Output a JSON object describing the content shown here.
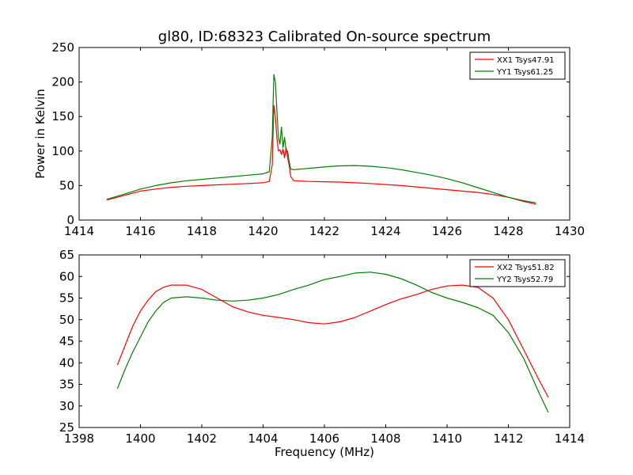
{
  "figure_title": "gl80, ID:68323 Calibrated On-source spectrum",
  "colors": {
    "red": "#ff0000",
    "green": "#007f00"
  },
  "chart_data": [
    {
      "type": "line",
      "title": "gl80, ID:68323 Calibrated On-source spectrum",
      "xlabel": "",
      "ylabel": "Power in Kelvin",
      "xlim": [
        1414,
        1430
      ],
      "ylim": [
        0,
        250
      ],
      "xticks": [
        1414,
        1416,
        1418,
        1420,
        1422,
        1424,
        1426,
        1428,
        1430
      ],
      "yticks": [
        0,
        50,
        100,
        150,
        200,
        250
      ],
      "grid": false,
      "legend_position": "top-right",
      "series": [
        {
          "name": "XX1 Tsys47.91",
          "color": "#ff0000",
          "x": [
            1414.9,
            1415.5,
            1416,
            1416.5,
            1417,
            1417.5,
            1418,
            1418.5,
            1419,
            1419.5,
            1420,
            1420.2,
            1420.3,
            1420.35,
            1420.4,
            1420.45,
            1420.5,
            1420.55,
            1420.6,
            1420.65,
            1420.7,
            1420.75,
            1420.8,
            1420.85,
            1420.9,
            1421,
            1421.5,
            1422,
            1422.5,
            1423,
            1423.5,
            1424,
            1424.5,
            1425,
            1425.5,
            1426,
            1426.5,
            1427,
            1427.5,
            1428,
            1428.5,
            1428.9
          ],
          "y": [
            29,
            36,
            42,
            45,
            47.5,
            49,
            50,
            51,
            52,
            53,
            54,
            56,
            80,
            166,
            150,
            120,
            100,
            102,
            95,
            103,
            90,
            105,
            90,
            80,
            63,
            57,
            56,
            55.5,
            55,
            54,
            53,
            51.5,
            50,
            48,
            46,
            44,
            42,
            40,
            37,
            33,
            27,
            23
          ]
        },
        {
          "name": "YY1 Tsys61.25",
          "color": "#007f00",
          "x": [
            1414.9,
            1415.5,
            1416,
            1416.5,
            1417,
            1417.5,
            1418,
            1418.5,
            1419,
            1419.5,
            1420,
            1420.2,
            1420.3,
            1420.35,
            1420.4,
            1420.45,
            1420.5,
            1420.55,
            1420.6,
            1420.65,
            1420.7,
            1420.75,
            1420.8,
            1420.85,
            1420.9,
            1421,
            1421.5,
            1422,
            1422.5,
            1423,
            1423.5,
            1424,
            1424.5,
            1425,
            1425.5,
            1426,
            1426.5,
            1427,
            1427.5,
            1428,
            1428.5,
            1428.9
          ],
          "y": [
            30,
            38,
            45,
            50,
            54,
            57,
            59,
            61,
            63,
            65,
            67,
            70,
            120,
            211,
            200,
            160,
            120,
            110,
            135,
            105,
            120,
            100,
            100,
            85,
            74,
            73,
            75,
            77,
            78.5,
            79,
            78,
            76,
            73,
            69,
            65,
            60,
            54,
            47,
            40,
            33,
            28,
            25
          ]
        }
      ]
    },
    {
      "type": "line",
      "title": "",
      "xlabel": "Frequency (MHz)",
      "ylabel": "",
      "xlim": [
        1398,
        1414
      ],
      "ylim": [
        25,
        65
      ],
      "xticks": [
        1398,
        1400,
        1402,
        1404,
        1406,
        1408,
        1410,
        1412,
        1414
      ],
      "yticks": [
        25,
        30,
        35,
        40,
        45,
        50,
        55,
        60,
        65
      ],
      "grid": false,
      "legend_position": "top-right",
      "series": [
        {
          "name": "XX2 Tsys51.82",
          "color": "#ff0000",
          "x": [
            1399.25,
            1399.5,
            1399.75,
            1400,
            1400.25,
            1400.5,
            1400.75,
            1401,
            1401.5,
            1402,
            1402.5,
            1403,
            1403.5,
            1404,
            1404.5,
            1405,
            1405.5,
            1406,
            1406.5,
            1407,
            1407.5,
            1408,
            1408.5,
            1409,
            1409.5,
            1410,
            1410.5,
            1411,
            1411.5,
            1412,
            1412.5,
            1413,
            1413.3
          ],
          "y": [
            39.5,
            44,
            48.5,
            52,
            54.5,
            56.5,
            57.5,
            58,
            58,
            57,
            55,
            53,
            51.8,
            51,
            50.5,
            50,
            49.3,
            49,
            49.5,
            50.5,
            52,
            53.5,
            54.8,
            55.8,
            57,
            57.8,
            58,
            57.5,
            55,
            50,
            43,
            36,
            32
          ]
        },
        {
          "name": "YY2 Tsys52.79",
          "color": "#007f00",
          "x": [
            1399.25,
            1399.5,
            1399.75,
            1400,
            1400.25,
            1400.5,
            1400.75,
            1401,
            1401.5,
            1402,
            1402.5,
            1403,
            1403.5,
            1404,
            1404.5,
            1405,
            1405.5,
            1406,
            1406.5,
            1407,
            1407.5,
            1408,
            1408.5,
            1409,
            1409.5,
            1410,
            1410.5,
            1411,
            1411.5,
            1412,
            1412.5,
            1413,
            1413.3
          ],
          "y": [
            34,
            38.5,
            42.5,
            46,
            49.5,
            52,
            54,
            55,
            55.3,
            55,
            54.5,
            54.3,
            54.5,
            55,
            55.8,
            57,
            58,
            59.3,
            60,
            60.8,
            61,
            60.5,
            59.5,
            58,
            56.3,
            55,
            54,
            52.8,
            51,
            47,
            41,
            33,
            28.5
          ]
        }
      ]
    }
  ]
}
